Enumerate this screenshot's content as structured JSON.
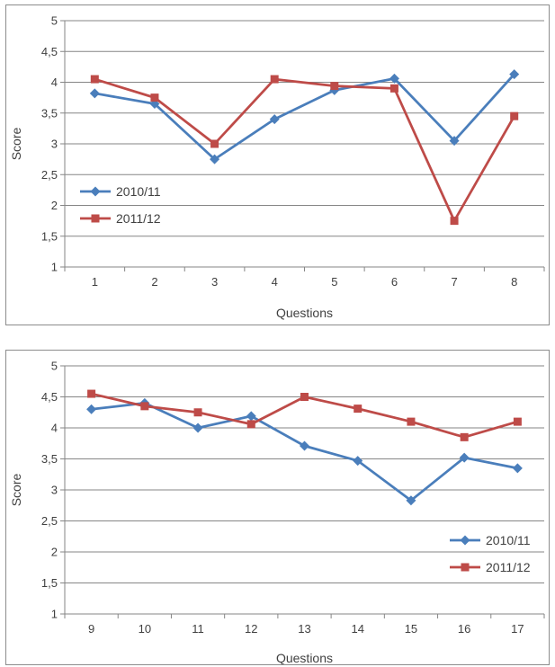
{
  "chart_data": [
    {
      "type": "line",
      "xlabel": "Questions",
      "ylabel": "Score",
      "categories": [
        "1",
        "2",
        "3",
        "4",
        "5",
        "6",
        "7",
        "8"
      ],
      "yticks": [
        "1",
        "1,5",
        "2",
        "2,5",
        "3",
        "3,5",
        "4",
        "4,5",
        "5"
      ],
      "ylim": [
        1,
        5
      ],
      "grid": true,
      "legend_position": "left",
      "series": [
        {
          "name": "2010/11",
          "color": "#4a7ebb",
          "marker": "diamond",
          "values": [
            3.82,
            3.65,
            2.75,
            3.4,
            3.87,
            4.06,
            3.05,
            4.13
          ]
        },
        {
          "name": "2011/12",
          "color": "#be4b48",
          "marker": "square",
          "values": [
            4.05,
            3.75,
            3.0,
            4.05,
            3.94,
            3.9,
            1.75,
            3.45
          ]
        }
      ]
    },
    {
      "type": "line",
      "xlabel": "Questions",
      "ylabel": "Score",
      "categories": [
        "9",
        "10",
        "11",
        "12",
        "13",
        "14",
        "15",
        "16",
        "17"
      ],
      "yticks": [
        "1",
        "1,5",
        "2",
        "2,5",
        "3",
        "3,5",
        "4",
        "4,5",
        "5"
      ],
      "ylim": [
        1,
        5
      ],
      "grid": true,
      "legend_position": "bottom-right",
      "series": [
        {
          "name": "2010/11",
          "color": "#4a7ebb",
          "marker": "diamond",
          "values": [
            4.3,
            4.4,
            4.0,
            4.19,
            3.71,
            3.47,
            2.83,
            3.52,
            3.35
          ]
        },
        {
          "name": "2011/12",
          "color": "#be4b48",
          "marker": "square",
          "values": [
            4.55,
            4.35,
            4.25,
            4.06,
            4.5,
            4.31,
            4.1,
            3.85,
            4.1
          ]
        }
      ]
    }
  ]
}
